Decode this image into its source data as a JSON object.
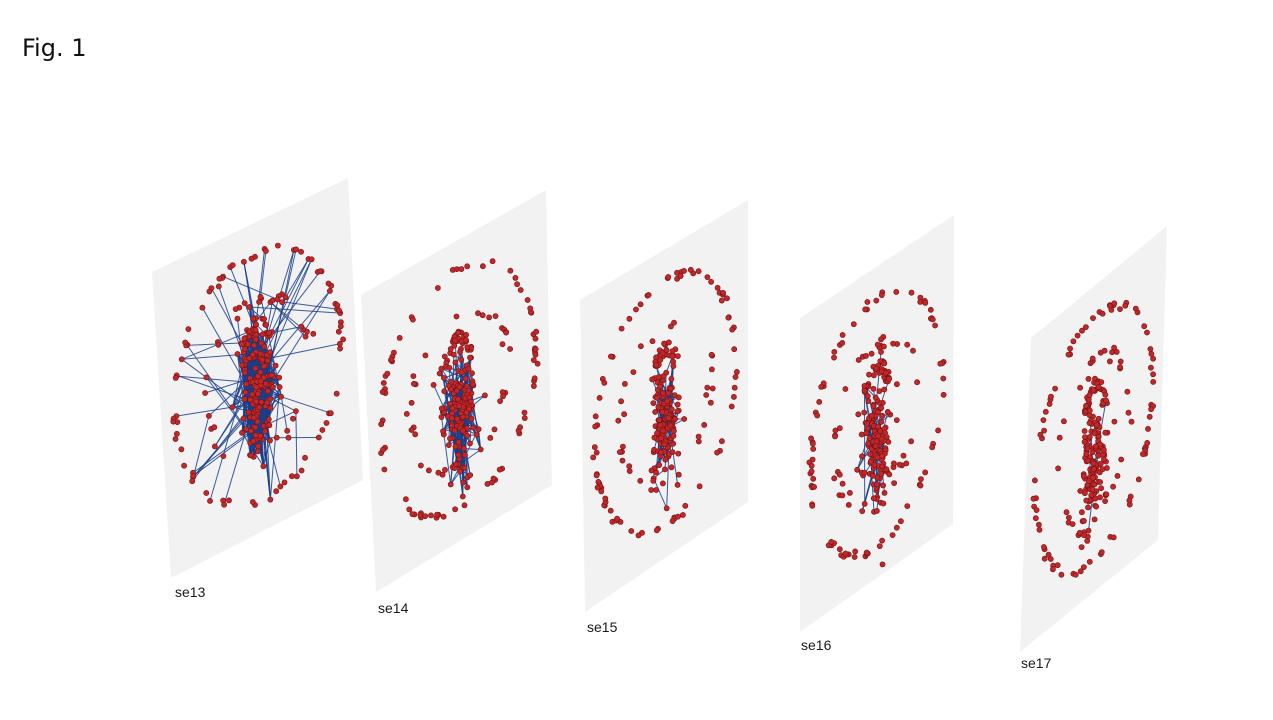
{
  "figure": {
    "title": "Fig. 1"
  },
  "colors": {
    "plane": "#f2f2f2",
    "node_fill": "#c0292b",
    "node_stroke": "#7a1010",
    "edge": "#1a3f8c",
    "label": "#1a1a1a"
  },
  "layers": [
    {
      "label": "se13",
      "edge_density": "very high"
    },
    {
      "label": "se14",
      "edge_density": "high"
    },
    {
      "label": "se15",
      "edge_density": "medium"
    },
    {
      "label": "se16",
      "edge_density": "low"
    },
    {
      "label": "se17",
      "edge_density": "very low"
    }
  ]
}
